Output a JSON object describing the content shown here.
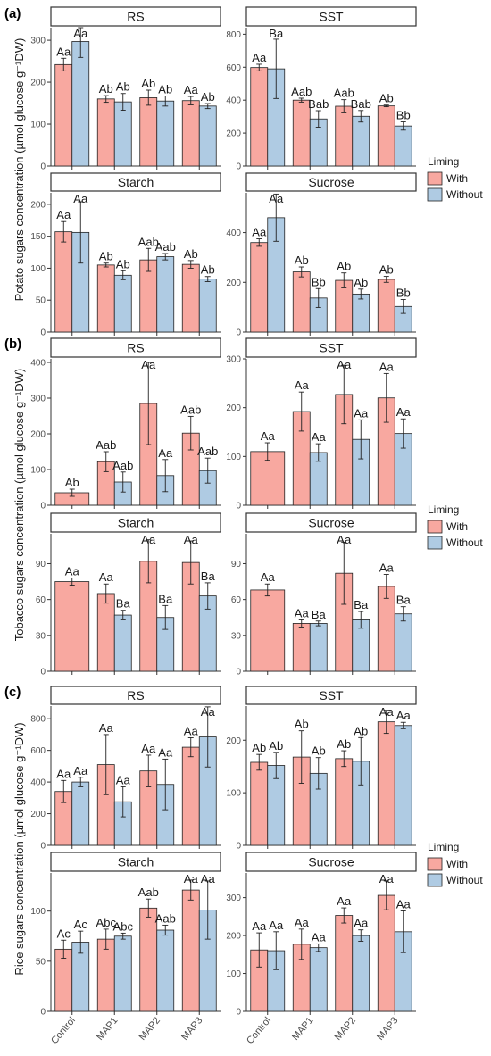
{
  "figure": {
    "panel_tags": [
      "(a)",
      "(b)",
      "(c)"
    ],
    "legend": {
      "title": "Liming",
      "entries": [
        "With",
        "Without"
      ]
    },
    "colors": {
      "With": "#F8A8A0",
      "Without": "#AFCBE3",
      "strip": "#ffffff",
      "axis": "#333333"
    },
    "x_categories": [
      "Control",
      "MAP1",
      "MAP2",
      "MAP3"
    ]
  },
  "chart_data": [
    {
      "group": "(a)",
      "ylabel": "Potato sugars concentration (µmol glucose g⁻¹DW)",
      "panels": [
        {
          "title": "RS",
          "type": "bar",
          "ylim": [
            0,
            330
          ],
          "yticks": [
            0,
            100,
            200,
            300
          ],
          "categories": [
            "Control",
            "MAP1",
            "MAP2",
            "MAP3"
          ],
          "series": [
            {
              "name": "With",
              "values": [
                242,
                160,
                163,
                156
              ],
              "errors": [
                15,
                8,
                18,
                10
              ],
              "labels": [
                "Aa",
                "Ab",
                "Ab",
                "Aa"
              ]
            },
            {
              "name": "Without",
              "values": [
                297,
                153,
                155,
                143
              ],
              "errors": [
                38,
                20,
                12,
                6
              ],
              "labels": [
                "Aa",
                "Ab",
                "Ab",
                "Ab"
              ]
            }
          ]
        },
        {
          "title": "SST",
          "type": "bar",
          "ylim": [
            0,
            840
          ],
          "yticks": [
            0,
            200,
            400,
            600,
            800
          ],
          "categories": [
            "Control",
            "MAP1",
            "MAP2",
            "MAP3"
          ],
          "series": [
            {
              "name": "With",
              "values": [
                598,
                400,
                363,
                365
              ],
              "errors": [
                20,
                12,
                40,
                5
              ],
              "labels": [
                "Aa",
                "Aab",
                "Aab",
                "Ab"
              ]
            },
            {
              "name": "Without",
              "values": [
                590,
                286,
                302,
                243
              ],
              "errors": [
                180,
                50,
                35,
                25
              ],
              "labels": [
                "Ba",
                "Bab",
                "Bab",
                "Bb"
              ]
            }
          ]
        },
        {
          "title": "Starch",
          "type": "bar",
          "ylim": [
            0,
            218
          ],
          "yticks": [
            0,
            50,
            100,
            150,
            200
          ],
          "categories": [
            "Control",
            "MAP1",
            "MAP2",
            "MAP3"
          ],
          "series": [
            {
              "name": "With",
              "values": [
                157,
                105,
                113,
                106
              ],
              "errors": [
                16,
                3,
                18,
                6
              ],
              "labels": [
                "Aa",
                "Ab",
                "Aab",
                "Ab"
              ]
            },
            {
              "name": "Without",
              "values": [
                156,
                89,
                118,
                83
              ],
              "errors": [
                48,
                7,
                5,
                4
              ],
              "labels": [
                "Aa",
                "Ab",
                "Aab",
                "Ab"
              ]
            }
          ]
        },
        {
          "title": "Sucrose",
          "type": "bar",
          "ylim": [
            0,
            560
          ],
          "yticks": [
            0,
            200,
            400
          ],
          "categories": [
            "Control",
            "MAP1",
            "MAP2",
            "MAP3"
          ],
          "series": [
            {
              "name": "With",
              "values": [
                360,
                242,
                208,
                212
              ],
              "errors": [
                15,
                20,
                30,
                12
              ],
              "labels": [
                "Aa",
                "Ab",
                "Ab",
                "Ab"
              ]
            },
            {
              "name": "Without",
              "values": [
                460,
                137,
                153,
                103
              ],
              "errors": [
                95,
                38,
                20,
                28
              ],
              "labels": [
                "Aa",
                "Bb",
                "Ab",
                "Bb"
              ]
            }
          ]
        }
      ]
    },
    {
      "group": "(b)",
      "ylabel": "Tobacco sugars concentration (µmol glucose g⁻¹DW)",
      "panels": [
        {
          "title": "RS",
          "type": "bar",
          "ylim": [
            0,
            410
          ],
          "yticks": [
            0,
            100,
            200,
            300,
            400
          ],
          "categories": [
            "Control",
            "MAP1",
            "MAP2",
            "MAP3"
          ],
          "series": [
            {
              "name": "With",
              "values": [
                35,
                122,
                285,
                202
              ],
              "errors": [
                10,
                28,
                115,
                47
              ],
              "labels": [
                "Ab",
                "Aab",
                "Aa",
                "Aab"
              ]
            },
            {
              "name": "Without",
              "values": [
                null,
                65,
                83,
                97
              ],
              "errors": [
                null,
                28,
                45,
                35
              ],
              "labels": [
                "",
                "Aab",
                "Aa",
                "Aab"
              ]
            }
          ]
        },
        {
          "title": "SST",
          "type": "bar",
          "ylim": [
            0,
            300
          ],
          "yticks": [
            0,
            100,
            200,
            300
          ],
          "categories": [
            "Control",
            "MAP1",
            "MAP2",
            "MAP3"
          ],
          "series": [
            {
              "name": "With",
              "values": [
                110,
                192,
                227,
                220
              ],
              "errors": [
                18,
                40,
                60,
                50
              ],
              "labels": [
                "Aa",
                "Aa",
                "Aa",
                "Aa"
              ]
            },
            {
              "name": "Without",
              "values": [
                null,
                108,
                135,
                147
              ],
              "errors": [
                null,
                18,
                40,
                30
              ],
              "labels": [
                "",
                "Aa",
                "Aa",
                "Aa"
              ]
            }
          ]
        },
        {
          "title": "Starch",
          "type": "bar",
          "ylim": [
            0,
            115
          ],
          "yticks": [
            0,
            30,
            60,
            90
          ],
          "categories": [
            "Control",
            "MAP1",
            "MAP2",
            "MAP3"
          ],
          "series": [
            {
              "name": "With",
              "values": [
                75,
                65,
                92,
                91
              ],
              "errors": [
                3,
                8,
                18,
                18
              ],
              "labels": [
                "Aa",
                "Aa",
                "Aa",
                "Aa"
              ]
            },
            {
              "name": "Without",
              "values": [
                null,
                47,
                45,
                63
              ],
              "errors": [
                null,
                4,
                10,
                11
              ],
              "labels": [
                "",
                "Ba",
                "Ba",
                "Ba"
              ]
            }
          ]
        },
        {
          "title": "Sucrose",
          "type": "bar",
          "ylim": [
            0,
            115
          ],
          "yticks": [
            0,
            30,
            60,
            90
          ],
          "categories": [
            "Control",
            "MAP1",
            "MAP2",
            "MAP3"
          ],
          "series": [
            {
              "name": "With",
              "values": [
                68,
                40,
                82,
                71
              ],
              "errors": [
                5,
                3,
                26,
                10
              ],
              "labels": [
                "Aa",
                "Aa",
                "Aa",
                "Aa"
              ]
            },
            {
              "name": "Without",
              "values": [
                null,
                40,
                43,
                48
              ],
              "errors": [
                null,
                2,
                7,
                6
              ],
              "labels": [
                "",
                "Ba",
                "Ba",
                "Ba"
              ]
            }
          ]
        }
      ]
    },
    {
      "group": "(c)",
      "ylabel": "Rice sugars concentration (µmol glucose g⁻¹DW)",
      "panels": [
        {
          "title": "RS",
          "type": "bar",
          "ylim": [
            0,
            880
          ],
          "yticks": [
            0,
            200,
            400,
            600,
            800
          ],
          "categories": [
            "Control",
            "MAP1",
            "MAP2",
            "MAP3"
          ],
          "series": [
            {
              "name": "With",
              "values": [
                340,
                510,
                470,
                620
              ],
              "errors": [
                70,
                190,
                100,
                60
              ],
              "labels": [
                "Aa",
                "Aa",
                "Aa",
                "Aa"
              ]
            },
            {
              "name": "Without",
              "values": [
                400,
                275,
                385,
                685
              ],
              "errors": [
                30,
                95,
                160,
                190
              ],
              "labels": [
                "Aa",
                "Aa",
                "Aa",
                "Aa"
              ]
            }
          ]
        },
        {
          "title": "SST",
          "type": "bar",
          "ylim": [
            0,
            265
          ],
          "yticks": [
            0,
            100,
            200
          ],
          "categories": [
            "Control",
            "MAP1",
            "MAP2",
            "MAP3"
          ],
          "series": [
            {
              "name": "With",
              "values": [
                158,
                168,
                165,
                235
              ],
              "errors": [
                15,
                50,
                15,
                22
              ],
              "labels": [
                "Ab",
                "Ab",
                "Ab",
                "Aa"
              ]
            },
            {
              "name": "Without",
              "values": [
                152,
                137,
                160,
                228
              ],
              "errors": [
                25,
                30,
                45,
                6
              ],
              "labels": [
                "Ab",
                "Ab",
                "Ab",
                "Aa"
              ]
            }
          ]
        },
        {
          "title": "Starch",
          "type": "bar",
          "ylim": [
            0,
            138
          ],
          "yticks": [
            0,
            50,
            100
          ],
          "categories": [
            "Control",
            "MAP1",
            "MAP2",
            "MAP3"
          ],
          "series": [
            {
              "name": "With",
              "values": [
                62,
                72,
                103,
                121
              ],
              "errors": [
                9,
                10,
                9,
                10
              ],
              "labels": [
                "Ac",
                "Abc",
                "Aab",
                "Aa"
              ]
            },
            {
              "name": "Without",
              "values": [
                69,
                75,
                81,
                101
              ],
              "errors": [
                11,
                3,
                5,
                29
              ],
              "labels": [
                "Ac",
                "Abc",
                "Aab",
                "Aa"
              ]
            }
          ]
        },
        {
          "title": "Sucrose",
          "type": "bar",
          "ylim": [
            0,
            365
          ],
          "yticks": [
            0,
            100,
            200,
            300
          ],
          "categories": [
            "Control",
            "MAP1",
            "MAP2",
            "MAP3"
          ],
          "series": [
            {
              "name": "With",
              "values": [
                162,
                177,
                253,
                306
              ],
              "errors": [
                45,
                40,
                20,
                38
              ],
              "labels": [
                "Aa",
                "Aa",
                "Aa",
                "Aa"
              ]
            },
            {
              "name": "Without",
              "values": [
                160,
                168,
                200,
                210
              ],
              "errors": [
                50,
                10,
                15,
                55
              ],
              "labels": [
                "Aa",
                "Aa",
                "Aa",
                "Aa"
              ]
            }
          ]
        }
      ]
    }
  ]
}
